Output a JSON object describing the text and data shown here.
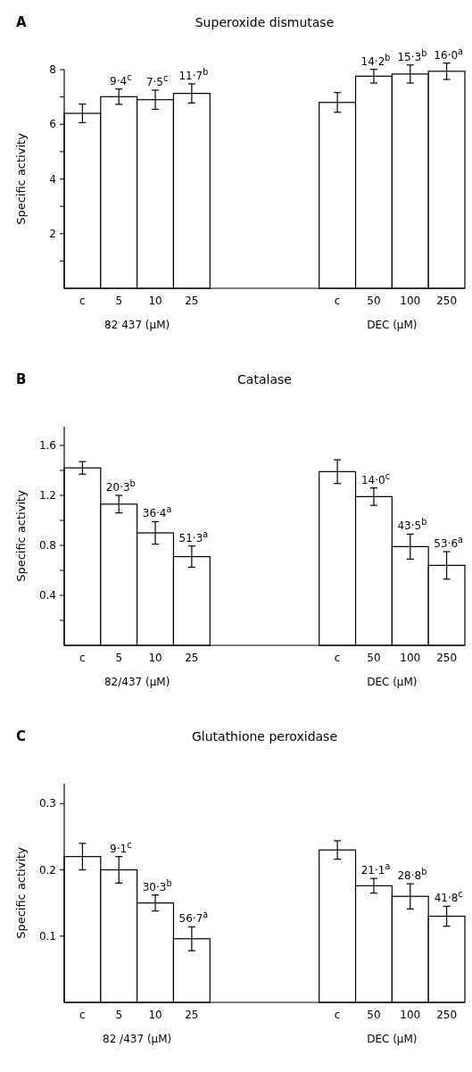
{
  "chart_data": [
    {
      "type": "bar",
      "title": "A",
      "subtitle": "Superoxide dismutase",
      "ylabel": "Specific activity",
      "categories": [
        "c",
        "5",
        "10",
        "25",
        null,
        null,
        null,
        "c",
        "50",
        "100",
        "250"
      ],
      "values": [
        6.4,
        7.01,
        6.9,
        7.13,
        null,
        null,
        null,
        6.8,
        7.76,
        7.84,
        7.94
      ],
      "errors": [
        0.34,
        0.28,
        0.35,
        0.35,
        null,
        null,
        null,
        0.36,
        0.25,
        0.33,
        0.3
      ],
      "color": "#ffffff",
      "ylim": [
        0,
        8
      ],
      "yticks": [
        {
          "value": 1,
          "label": null
        },
        2,
        {
          "value": 3,
          "label": null
        },
        4,
        {
          "value": 5,
          "label": null
        },
        6,
        {
          "value": 7,
          "label": null
        },
        8
      ],
      "annotations": [
        "82 437 (μM)",
        "DEC (μM)",
        {
          "text": "9·4$^{c}$",
          "x": "5",
          "y": 7.29
        },
        {
          "text": "7·5$^{c}$",
          "x": "10",
          "y": 7.25
        },
        {
          "text": "11·7$^{b}$",
          "x": "25",
          "y": 7.48
        },
        {
          "text": "14·2$^{b}$",
          "x": "50",
          "y": 8.01
        },
        {
          "text": "15·3$^{b}$",
          "x": "100",
          "y": 8.17
        },
        {
          "text": "16·0$^{a}$",
          "x": "250",
          "y": 8.24
        }
      ]
    },
    {
      "type": "bar",
      "title": "B",
      "subtitle": "Catalase",
      "ylabel": "Specific activity",
      "categories": [
        "c",
        "5",
        "10",
        "25",
        null,
        null,
        null,
        "c",
        "50",
        "100",
        "250"
      ],
      "values": [
        1.42,
        1.13,
        0.9,
        0.71,
        null,
        null,
        null,
        1.39,
        1.19,
        0.79,
        0.64
      ],
      "errors": [
        0.05,
        0.07,
        0.09,
        0.085,
        null,
        null,
        null,
        0.095,
        0.07,
        0.1,
        0.11
      ],
      "color": "#ffffff",
      "ylim": [
        0,
        1.75
      ],
      "yticks": [
        {
          "value": 0.2,
          "label": null
        },
        0.4,
        {
          "value": 0.6,
          "label": null
        },
        0.8,
        {
          "value": 1.0,
          "label": null
        },
        1.2,
        {
          "value": 1.4,
          "label": null
        },
        1.6
      ],
      "annotations": [
        "82/437 (μM)",
        "DEC (μM)",
        {
          "text": "20·3$^{b}$",
          "x": "5",
          "y": 1.2
        },
        {
          "text": "36·4$^{a}$",
          "x": "10",
          "y": 0.99
        },
        {
          "text": "51·3$^{a}$",
          "x": "25",
          "y": 0.795
        },
        {
          "text": "14·0$^{c}$",
          "x": "50",
          "y": 1.26
        },
        {
          "text": "43·5$^{b}$",
          "x": "100",
          "y": 0.89
        },
        {
          "text": "53·6$^{a}$",
          "x": "250",
          "y": 0.75
        }
      ]
    },
    {
      "type": "bar",
      "title": "C",
      "subtitle": "Glutathione peroxidase",
      "ylabel": "Specific activity",
      "categories": [
        "c",
        "5",
        "10",
        "25",
        null,
        null,
        null,
        "c",
        "50",
        "100",
        "250"
      ],
      "values": [
        0.22,
        0.2,
        0.15,
        0.096,
        null,
        null,
        null,
        0.23,
        0.176,
        0.16,
        0.13
      ],
      "errors": [
        0.02,
        0.02,
        0.012,
        0.018,
        null,
        null,
        null,
        0.014,
        0.011,
        0.019,
        0.015
      ],
      "color": "#ffffff",
      "ylim": [
        0,
        0.33
      ],
      "yticks": [
        0.1,
        0.2,
        0.3
      ],
      "annotations": [
        "82 /437 (μM)",
        "DEC (μM)",
        {
          "text": "9·1$^{c}$",
          "x": "5",
          "y": 0.22
        },
        {
          "text": "30·3$^{b}$",
          "x": "10",
          "y": 0.162
        },
        {
          "text": "56·7$^{a}$",
          "x": "25",
          "y": 0.114
        },
        {
          "text": "21·1$^{a}$",
          "x": "50",
          "y": 0.187
        },
        {
          "text": "28·8$^{b}$",
          "x": "100",
          "y": 0.179
        },
        {
          "text": "41·8$^{c}$",
          "x": "250",
          "y": 0.145
        }
      ]
    }
  ]
}
